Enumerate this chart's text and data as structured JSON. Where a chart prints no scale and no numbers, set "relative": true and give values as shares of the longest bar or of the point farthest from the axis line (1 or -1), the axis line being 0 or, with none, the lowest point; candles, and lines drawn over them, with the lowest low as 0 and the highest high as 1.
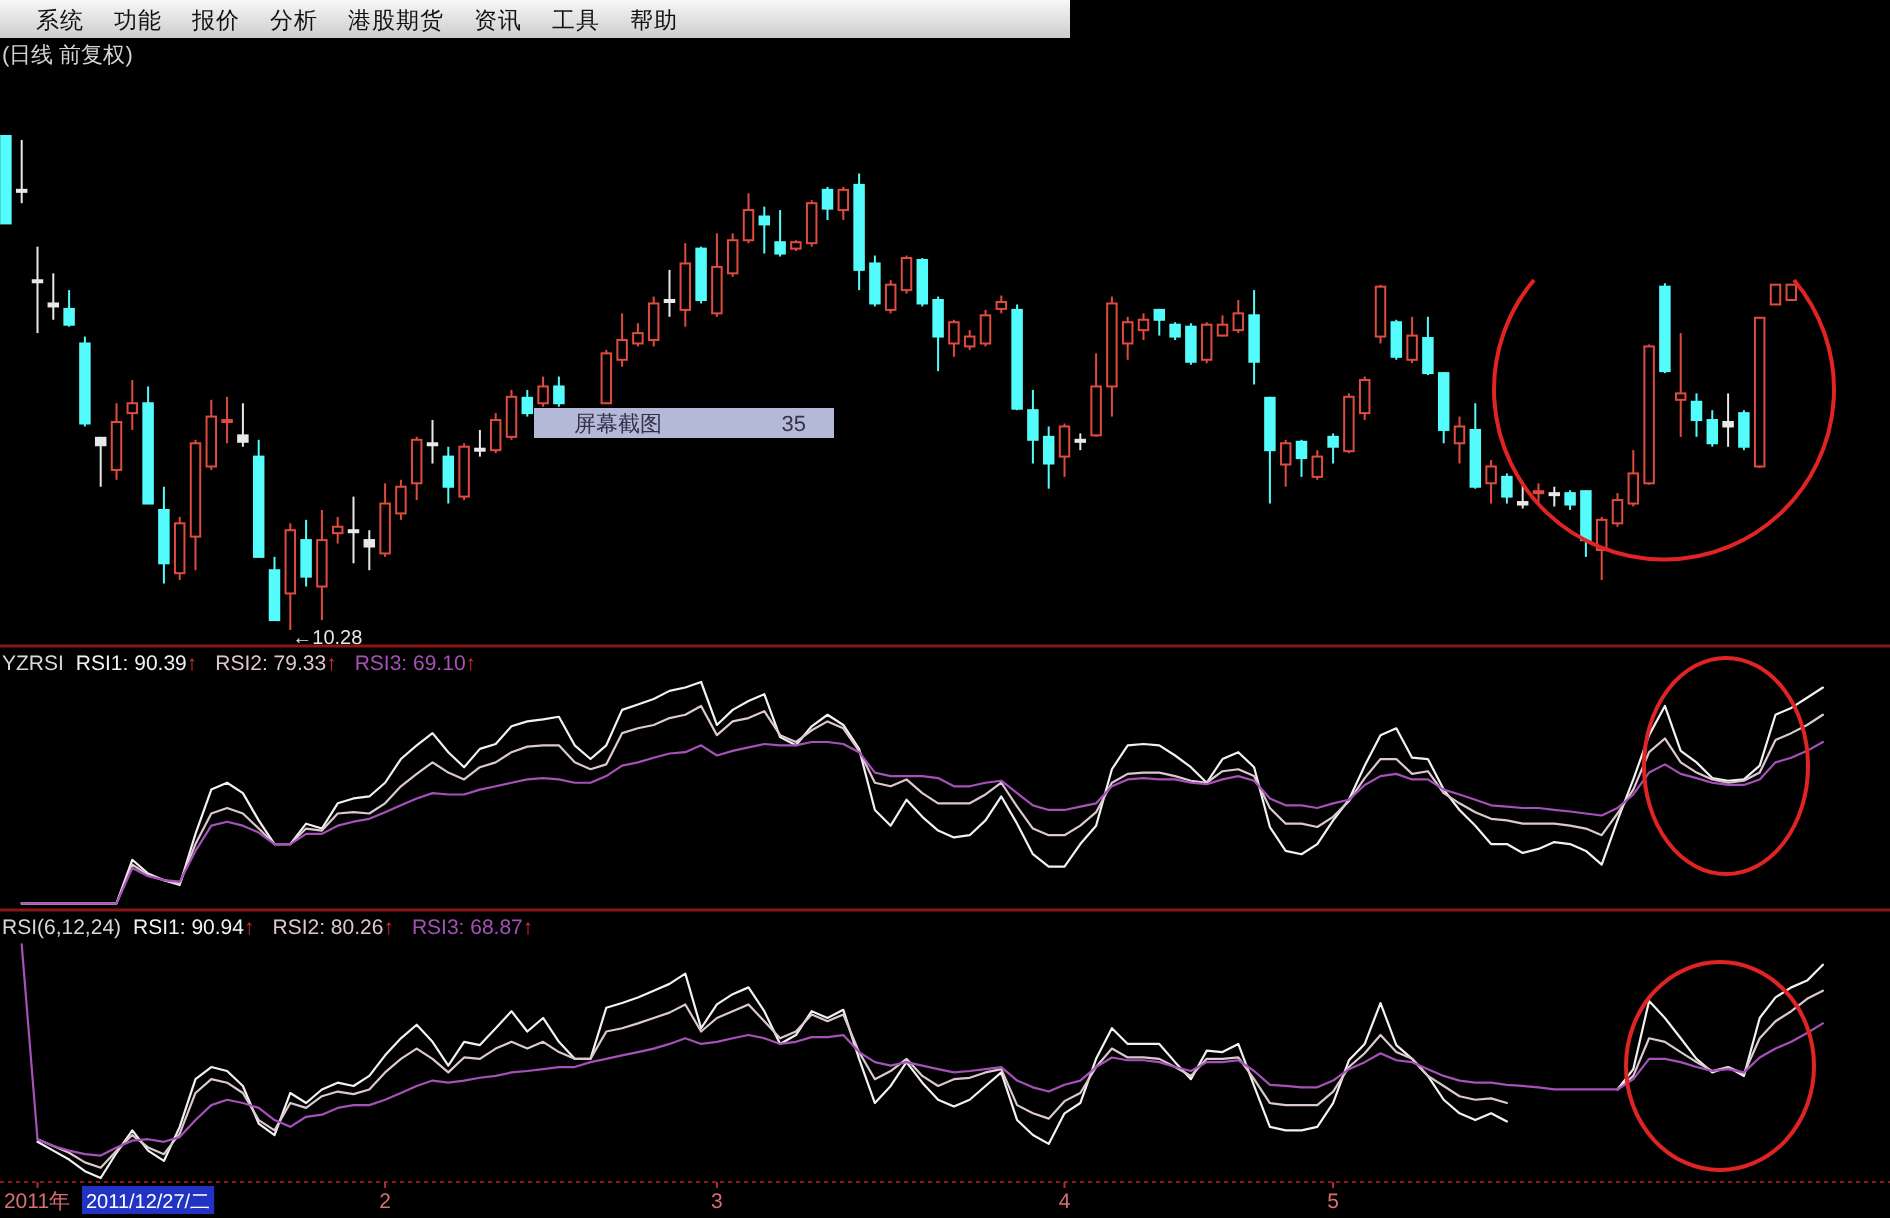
{
  "chart_data": [
    {
      "type": "other",
      "annotations": [
        "系统",
        "功能",
        "报价",
        "分析",
        "港股期货",
        "资讯",
        "工具",
        "帮助"
      ]
    },
    {
      "type": "candlestick",
      "title": "(日线 前复权)",
      "relative": true,
      "categories": [
        null,
        null,
        null,
        null,
        null,
        null,
        null,
        null,
        null,
        null,
        null,
        null,
        null,
        null,
        null,
        null,
        null,
        null,
        null,
        null,
        null,
        null,
        null,
        null,
        null,
        null,
        null,
        null,
        null,
        null,
        null,
        null,
        null,
        null,
        null,
        null,
        null,
        null,
        null,
        null,
        null,
        null,
        null,
        null,
        null,
        null,
        null,
        null,
        null,
        null,
        null,
        null,
        null,
        null,
        null,
        null,
        null,
        null,
        null,
        null,
        null,
        null,
        null,
        null,
        null,
        null,
        null,
        null,
        null,
        null,
        null,
        null,
        null,
        null,
        null,
        null,
        null,
        null,
        null,
        null,
        null,
        null,
        null,
        null,
        null,
        null,
        null,
        null,
        null,
        null,
        null,
        null,
        null,
        null,
        null,
        null,
        null,
        null,
        null,
        null,
        null,
        null,
        null,
        null,
        null,
        null,
        null,
        null,
        null,
        null,
        null,
        null,
        null,
        null,
        null,
        null
      ],
      "ohlc": [
        [
          1,
          1,
          0.823,
          0.823
        ],
        [
          0.891,
          0.992,
          0.864,
          0.891
        ],
        [
          0.708,
          0.776,
          0.601,
          0.708
        ],
        [
          0.661,
          0.722,
          0.628,
          0.655
        ],
        [
          0.65,
          0.688,
          0.614,
          0.618
        ],
        [
          0.58,
          0.594,
          0.412,
          0.418
        ],
        [
          0.389,
          0.391,
          0.29,
          0.374
        ],
        [
          0.324,
          0.459,
          0.304,
          0.421
        ],
        [
          0.439,
          0.506,
          0.405,
          0.459
        ],
        [
          0.459,
          0.493,
          0.256,
          0.256
        ],
        [
          0.243,
          0.29,
          0.094,
          0.135
        ],
        [
          0.115,
          0.229,
          0.101,
          0.216
        ],
        [
          0.189,
          0.385,
          0.121,
          0.378
        ],
        [
          0.331,
          0.466,
          0.324,
          0.432
        ],
        [
          0.425,
          0.472,
          0.378,
          0.425
        ],
        [
          0.394,
          0.459,
          0.371,
          0.381
        ],
        [
          0.351,
          0.385,
          0.146,
          0.148
        ],
        [
          0.121,
          0.148,
          0.02,
          0.02
        ],
        [
          0.074,
          0.216,
          0,
          0.202
        ],
        [
          0.182,
          0.223,
          0.088,
          0.108
        ],
        [
          0.088,
          0.243,
          0.02,
          0.182
        ],
        [
          0.196,
          0.229,
          0.175,
          0.209
        ],
        [
          0.202,
          0.27,
          0.135,
          0.202
        ],
        [
          0.182,
          0.202,
          0.121,
          0.169
        ],
        [
          0.155,
          0.297,
          0.148,
          0.256
        ],
        [
          0.236,
          0.304,
          0.223,
          0.29
        ],
        [
          0.297,
          0.391,
          0.263,
          0.385
        ],
        [
          0.378,
          0.425,
          0.337,
          0.378
        ],
        [
          0.351,
          0.371,
          0.256,
          0.29
        ],
        [
          0.27,
          0.378,
          0.263,
          0.371
        ],
        [
          0.367,
          0.405,
          0.351,
          0.367
        ],
        [
          0.364,
          0.439,
          0.358,
          0.425
        ],
        [
          0.391,
          0.486,
          0.385,
          0.472
        ],
        [
          0.47,
          0.486,
          0.432,
          0.439
        ],
        [
          0.459,
          0.513,
          0.452,
          0.493
        ],
        [
          0.493,
          0.513,
          0.452,
          0.459
        ],
        null,
        null,
        [
          0.459,
          0.567,
          0.459,
          0.56
        ],
        [
          0.547,
          0.641,
          0.533,
          0.587
        ],
        [
          0.58,
          0.621,
          0.574,
          0.601
        ],
        [
          0.587,
          0.675,
          0.574,
          0.661
        ],
        [
          0.668,
          0.729,
          0.634,
          0.668
        ],
        [
          0.648,
          0.783,
          0.614,
          0.742
        ],
        [
          0.772,
          0.776,
          0.661,
          0.668
        ],
        [
          0.641,
          0.803,
          0.634,
          0.735
        ],
        [
          0.722,
          0.803,
          0.715,
          0.789
        ],
        [
          0.789,
          0.884,
          0.783,
          0.85
        ],
        [
          0.837,
          0.857,
          0.762,
          0.821
        ],
        [
          0.785,
          0.85,
          0.756,
          0.762
        ],
        [
          0.772,
          0.789,
          0.767,
          0.785
        ],
        [
          0.783,
          0.87,
          0.776,
          0.864
        ],
        [
          0.891,
          0.897,
          0.83,
          0.853
        ],
        [
          0.85,
          0.897,
          0.83,
          0.891
        ],
        [
          0.901,
          0.924,
          0.688,
          0.729
        ],
        [
          0.742,
          0.758,
          0.655,
          0.661
        ],
        [
          0.648,
          0.708,
          0.641,
          0.699
        ],
        [
          0.688,
          0.758,
          0.681,
          0.753
        ],
        [
          0.749,
          0.753,
          0.655,
          0.661
        ],
        [
          0.668,
          0.675,
          0.524,
          0.594
        ],
        [
          0.58,
          0.628,
          0.553,
          0.623
        ],
        [
          0.574,
          0.607,
          0.567,
          0.594
        ],
        [
          0.58,
          0.648,
          0.574,
          0.637
        ],
        [
          0.65,
          0.677,
          0.641,
          0.664
        ],
        [
          0.648,
          0.659,
          0.445,
          0.448
        ],
        [
          0.445,
          0.486,
          0.337,
          0.385
        ],
        [
          0.391,
          0.412,
          0.286,
          0.337
        ],
        [
          0.351,
          0.418,
          0.31,
          0.412
        ],
        [
          0.385,
          0.398,
          0.364,
          0.385
        ],
        [
          0.394,
          0.56,
          0.391,
          0.493
        ],
        [
          0.493,
          0.675,
          0.432,
          0.661
        ],
        [
          0.58,
          0.634,
          0.547,
          0.623
        ],
        [
          0.607,
          0.641,
          0.587,
          0.628
        ],
        [
          0.648,
          0.65,
          0.596,
          0.628
        ],
        [
          0.618,
          0.623,
          0.587,
          0.594
        ],
        [
          0.614,
          0.621,
          0.537,
          0.543
        ],
        [
          0.547,
          0.623,
          0.54,
          0.618
        ],
        [
          0.596,
          0.637,
          0.594,
          0.618
        ],
        [
          0.607,
          0.668,
          0.601,
          0.641
        ],
        [
          0.637,
          0.688,
          0.497,
          0.543
        ],
        [
          0.47,
          0.472,
          0.256,
          0.364
        ],
        [
          0.335,
          0.385,
          0.29,
          0.378
        ],
        [
          0.381,
          0.385,
          0.31,
          0.348
        ],
        [
          0.31,
          0.364,
          0.304,
          0.351
        ],
        [
          0.391,
          0.398,
          0.337,
          0.371
        ],
        [
          0.362,
          0.479,
          0.358,
          0.472
        ],
        [
          0.439,
          0.513,
          0.425,
          0.506
        ],
        [
          0.594,
          0.699,
          0.58,
          0.695
        ],
        [
          0.623,
          0.628,
          0.547,
          0.553
        ],
        [
          0.547,
          0.634,
          0.54,
          0.596
        ],
        [
          0.591,
          0.634,
          0.516,
          0.52
        ],
        [
          0.52,
          0.522,
          0.378,
          0.405
        ],
        [
          0.378,
          0.432,
          0.337,
          0.412
        ],
        [
          0.405,
          0.459,
          0.286,
          0.29
        ],
        [
          0.297,
          0.344,
          0.256,
          0.331
        ],
        [
          0.31,
          0.317,
          0.256,
          0.27
        ],
        [
          0.259,
          0.297,
          0.246,
          0.254
        ],
        [
          0.281,
          0.297,
          0.256,
          0.281
        ],
        [
          0.277,
          0.29,
          0.25,
          0.277
        ],
        [
          0.277,
          0.283,
          0.243,
          0.254
        ],
        [
          0.281,
          0.283,
          0.148,
          0.182
        ],
        [
          0.162,
          0.229,
          0.101,
          0.223
        ],
        [
          0.216,
          0.277,
          0.209,
          0.263
        ],
        [
          0.256,
          0.364,
          0.25,
          0.317
        ],
        [
          0.297,
          0.578,
          0.294,
          0.574
        ],
        [
          0.695,
          0.702,
          0.52,
          0.524
        ],
        [
          0.466,
          0.601,
          0.391,
          0.479
        ],
        [
          0.462,
          0.479,
          0.391,
          0.425
        ],
        [
          0.425,
          0.445,
          0.371,
          0.378
        ],
        [
          0.421,
          0.479,
          0.371,
          0.412
        ],
        [
          0.439,
          0.445,
          0.364,
          0.371
        ],
        [
          0.331,
          0.634,
          0.328,
          0.632
        ],
        [
          0.659,
          0.699,
          0.659,
          0.699
        ],
        [
          0.668,
          0.699,
          0.668,
          0.699
        ],
        null,
        null
      ],
      "colors": [
        "#54fcfc",
        "#e8e8e8",
        "#e8e8e8",
        "#e8e8e8",
        "#54fcfc",
        "#54fcfc",
        "#e8e8e8",
        "#e04b3f",
        "#e04b3f",
        "#54fcfc",
        "#54fcfc",
        "#e04b3f",
        "#e04b3f",
        "#e04b3f",
        "#e04b3f",
        "#e8e8e8",
        "#54fcfc",
        "#54fcfc",
        "#e04b3f",
        "#54fcfc",
        "#e04b3f",
        "#e04b3f",
        "#e8e8e8",
        "#e8e8e8",
        "#e04b3f",
        "#e04b3f",
        "#e04b3f",
        "#e8e8e8",
        "#54fcfc",
        "#e04b3f",
        "#e8e8e8",
        "#e04b3f",
        "#e04b3f",
        "#54fcfc",
        "#e04b3f",
        "#54fcfc",
        null,
        null,
        "#e04b3f",
        "#e04b3f",
        "#e04b3f",
        "#e04b3f",
        "#e8e8e8",
        "#e04b3f",
        "#54fcfc",
        "#e04b3f",
        "#e04b3f",
        "#e04b3f",
        "#54fcfc",
        "#54fcfc",
        "#e04b3f",
        "#e04b3f",
        "#54fcfc",
        "#e04b3f",
        "#54fcfc",
        "#54fcfc",
        "#e04b3f",
        "#e04b3f",
        "#54fcfc",
        "#54fcfc",
        "#e04b3f",
        "#e04b3f",
        "#e04b3f",
        "#e04b3f",
        "#54fcfc",
        "#54fcfc",
        "#54fcfc",
        "#e04b3f",
        "#e8e8e8",
        "#e04b3f",
        "#e04b3f",
        "#e04b3f",
        "#e04b3f",
        "#54fcfc",
        "#54fcfc",
        "#54fcfc",
        "#e04b3f",
        "#e04b3f",
        "#e04b3f",
        "#54fcfc",
        "#54fcfc",
        "#e04b3f",
        "#54fcfc",
        "#e04b3f",
        "#54fcfc",
        "#e04b3f",
        "#e04b3f",
        "#e04b3f",
        "#54fcfc",
        "#e04b3f",
        "#54fcfc",
        "#54fcfc",
        "#e04b3f",
        "#54fcfc",
        "#e04b3f",
        "#54fcfc",
        "#e8e8e8",
        "#e04b3f",
        "#e8e8e8",
        "#54fcfc",
        "#54fcfc",
        "#e04b3f",
        "#e04b3f",
        "#e04b3f",
        "#e04b3f",
        "#54fcfc",
        "#e04b3f",
        "#54fcfc",
        "#54fcfc",
        "#e8e8e8",
        "#54fcfc",
        "#e04b3f",
        "#e04b3f",
        "#e04b3f",
        null,
        null
      ],
      "annotations": [
        "屏幕截图",
        "35",
        "←10.28"
      ]
    },
    {
      "type": "line",
      "title": "YZRSI",
      "relative": true,
      "legend": "top left",
      "categories": [
        null,
        null,
        null,
        null,
        null,
        null,
        null,
        null,
        null,
        null,
        null,
        null,
        null,
        null,
        null,
        null,
        null,
        null,
        null,
        null,
        null,
        null,
        null,
        null,
        null,
        null,
        null,
        null,
        null,
        null,
        null,
        null,
        null,
        null,
        null,
        null,
        null,
        null,
        null,
        null,
        null,
        null,
        null,
        null,
        null,
        null,
        null,
        null,
        null,
        null,
        null,
        null,
        null,
        null,
        null,
        null,
        null,
        null,
        null,
        null,
        null,
        null,
        null,
        null,
        null,
        null,
        null,
        null,
        null,
        null,
        null,
        null,
        null,
        null,
        null,
        null,
        null,
        null,
        null,
        null,
        null,
        null,
        null,
        null,
        null,
        null,
        null,
        null,
        null,
        null,
        null,
        null,
        null,
        null,
        null,
        null,
        null,
        null,
        null,
        null,
        null,
        null,
        null,
        null,
        null,
        null,
        null,
        null,
        null,
        null,
        null,
        null,
        null,
        null,
        null,
        null
      ],
      "series": [
        {
          "name": "RSI1: 90.39↑",
          "color": "#f2f2f2",
          "values": [
            null,
            0,
            0,
            0,
            0,
            0,
            0,
            0,
            0.197,
            0.135,
            0.105,
            0.083,
            0.314,
            0.514,
            0.545,
            0.498,
            0.375,
            0.268,
            0.268,
            0.36,
            0.338,
            0.452,
            0.474,
            0.483,
            0.545,
            0.652,
            0.714,
            0.769,
            0.683,
            0.615,
            0.698,
            0.72,
            0.8,
            0.822,
            0.831,
            0.843,
            0.714,
            0.652,
            0.714,
            0.874,
            0.898,
            0.923,
            0.96,
            0.975,
            1,
            0.806,
            0.874,
            0.914,
            0.945,
            0.751,
            0.714,
            0.8,
            0.852,
            0.806,
            0.698,
            0.422,
            0.351,
            0.468,
            0.391,
            0.329,
            0.298,
            0.308,
            0.375,
            0.483,
            0.36,
            0.222,
            0.166,
            0.166,
            0.268,
            0.351,
            0.606,
            0.714,
            0.72,
            0.714,
            0.668,
            0.615,
            0.545,
            0.652,
            0.683,
            0.615,
            0.345,
            0.237,
            0.222,
            0.268,
            0.375,
            0.468,
            0.622,
            0.76,
            0.791,
            0.658,
            0.652,
            0.514,
            0.422,
            0.351,
            0.268,
            0.268,
            0.228,
            0.246,
            0.277,
            0.268,
            0.237,
            0.175,
            0.375,
            0.56,
            0.76,
            0.892,
            0.689,
            0.637,
            0.566,
            0.554,
            0.56,
            0.622,
            0.852,
            0.883,
            0.929,
            0.975
          ]
        },
        {
          "name": "RSI2: 79.33↑",
          "color": "#dcc8d0",
          "values": [
            null,
            0,
            0,
            0,
            0,
            0,
            0,
            0,
            0.175,
            0.129,
            0.105,
            0.089,
            0.268,
            0.406,
            0.431,
            0.406,
            0.338,
            0.268,
            0.268,
            0.338,
            0.329,
            0.406,
            0.412,
            0.406,
            0.452,
            0.529,
            0.585,
            0.637,
            0.591,
            0.56,
            0.615,
            0.637,
            0.683,
            0.708,
            0.714,
            0.714,
            0.637,
            0.606,
            0.628,
            0.769,
            0.791,
            0.806,
            0.837,
            0.852,
            0.892,
            0.76,
            0.822,
            0.837,
            0.868,
            0.76,
            0.729,
            0.782,
            0.822,
            0.791,
            0.689,
            0.545,
            0.529,
            0.56,
            0.498,
            0.452,
            0.452,
            0.452,
            0.492,
            0.545,
            0.437,
            0.338,
            0.308,
            0.308,
            0.351,
            0.412,
            0.545,
            0.585,
            0.591,
            0.591,
            0.575,
            0.554,
            0.545,
            0.597,
            0.606,
            0.575,
            0.431,
            0.36,
            0.36,
            0.345,
            0.391,
            0.462,
            0.566,
            0.652,
            0.652,
            0.585,
            0.597,
            0.498,
            0.452,
            0.412,
            0.382,
            0.375,
            0.36,
            0.36,
            0.36,
            0.351,
            0.338,
            0.308,
            0.406,
            0.514,
            0.683,
            0.745,
            0.637,
            0.591,
            0.56,
            0.545,
            0.554,
            0.591,
            0.738,
            0.769,
            0.806,
            0.852
          ]
        },
        {
          "name": "RSI3: 69.10↑",
          "color": "#a651b8",
          "values": [
            null,
            0,
            0,
            0,
            0,
            0,
            0,
            0,
            0.16,
            0.123,
            0.105,
            0.098,
            0.237,
            0.351,
            0.369,
            0.351,
            0.32,
            0.268,
            0.268,
            0.314,
            0.314,
            0.351,
            0.369,
            0.382,
            0.412,
            0.443,
            0.474,
            0.498,
            0.492,
            0.492,
            0.514,
            0.529,
            0.545,
            0.56,
            0.566,
            0.56,
            0.545,
            0.545,
            0.575,
            0.622,
            0.637,
            0.658,
            0.677,
            0.683,
            0.714,
            0.668,
            0.689,
            0.705,
            0.72,
            0.714,
            0.714,
            0.729,
            0.729,
            0.72,
            0.683,
            0.591,
            0.575,
            0.575,
            0.575,
            0.566,
            0.529,
            0.529,
            0.545,
            0.554,
            0.498,
            0.443,
            0.422,
            0.422,
            0.437,
            0.452,
            0.529,
            0.56,
            0.566,
            0.56,
            0.56,
            0.545,
            0.538,
            0.56,
            0.575,
            0.554,
            0.474,
            0.443,
            0.443,
            0.431,
            0.452,
            0.468,
            0.535,
            0.575,
            0.585,
            0.56,
            0.56,
            0.514,
            0.492,
            0.468,
            0.443,
            0.437,
            0.431,
            0.431,
            0.422,
            0.415,
            0.406,
            0.397,
            0.431,
            0.492,
            0.591,
            0.628,
            0.585,
            0.566,
            0.545,
            0.535,
            0.535,
            0.56,
            0.637,
            0.658,
            0.689,
            0.729
          ]
        }
      ]
    },
    {
      "type": "line",
      "title": "RSI(6,12,24)",
      "relative": true,
      "tick_labels": "x",
      "legend": "top left",
      "categories": [
        null,
        null,
        "2011年",
        null,
        null,
        null,
        null,
        null,
        null,
        null,
        null,
        null,
        null,
        null,
        null,
        null,
        null,
        null,
        null,
        null,
        null,
        null,
        null,
        null,
        "2",
        null,
        null,
        null,
        null,
        null,
        null,
        null,
        null,
        null,
        null,
        null,
        null,
        null,
        null,
        null,
        null,
        null,
        null,
        null,
        null,
        "3",
        null,
        null,
        null,
        null,
        null,
        null,
        null,
        null,
        null,
        null,
        null,
        null,
        null,
        null,
        null,
        null,
        null,
        null,
        null,
        null,
        null,
        "4",
        null,
        null,
        null,
        null,
        null,
        null,
        null,
        null,
        null,
        null,
        null,
        null,
        null,
        null,
        null,
        null,
        "5",
        null,
        null,
        null,
        null,
        null,
        null,
        null,
        null,
        null,
        null,
        null,
        null,
        null,
        null,
        null,
        null,
        null,
        null,
        null,
        null,
        null,
        null,
        null,
        null,
        null,
        null,
        null,
        null,
        null,
        null,
        null
      ],
      "annotations": [
        "2011/12/27/二"
      ],
      "series": [
        {
          "name": "RSI1: 90.94↑",
          "color": "#f2f2f2",
          "values": [
            null,
            null,
            0.155,
            0.117,
            0.079,
            0.029,
            0,
            0.108,
            0.204,
            0.117,
            0.073,
            0.219,
            0.423,
            0.475,
            0.458,
            0.394,
            0.233,
            0.184,
            0.364,
            0.321,
            0.379,
            0.408,
            0.394,
            0.437,
            0.525,
            0.598,
            0.656,
            0.583,
            0.481,
            0.583,
            0.569,
            0.641,
            0.714,
            0.627,
            0.685,
            0.583,
            0.51,
            0.51,
            0.729,
            0.749,
            0.773,
            0.802,
            0.831,
            0.875,
            0.641,
            0.743,
            0.787,
            0.816,
            0.714,
            0.574,
            0.612,
            0.714,
            0.685,
            0.72,
            0.51,
            0.321,
            0.394,
            0.496,
            0.408,
            0.335,
            0.306,
            0.335,
            0.394,
            0.452,
            0.248,
            0.184,
            0.146,
            0.277,
            0.321,
            0.51,
            0.641,
            0.574,
            0.574,
            0.574,
            0.496,
            0.423,
            0.545,
            0.539,
            0.574,
            0.394,
            0.219,
            0.204,
            0.204,
            0.219,
            0.321,
            0.504,
            0.574,
            0.749,
            0.569,
            0.51,
            0.437,
            0.335,
            0.277,
            0.248,
            0.277,
            0.242,
            null,
            null,
            null,
            null,
            null,
            null,
            0.379,
            0.466,
            0.758,
            0.685,
            0.598,
            0.51,
            0.452,
            0.475,
            0.437,
            0.685,
            0.773,
            0.816,
            0.845,
            0.913
          ]
        },
        {
          "name": "RSI2: 80.26↑",
          "color": "#dcc8d0",
          "values": [
            null,
            null,
            0.166,
            0.137,
            0.108,
            0.067,
            0.044,
            0.117,
            0.184,
            0.131,
            0.102,
            0.19,
            0.364,
            0.423,
            0.408,
            0.364,
            0.248,
            0.204,
            0.321,
            0.3,
            0.35,
            0.37,
            0.359,
            0.379,
            0.452,
            0.51,
            0.554,
            0.51,
            0.452,
            0.516,
            0.51,
            0.554,
            0.583,
            0.554,
            0.583,
            0.539,
            0.51,
            0.51,
            0.627,
            0.641,
            0.662,
            0.685,
            0.708,
            0.743,
            0.627,
            0.685,
            0.714,
            0.743,
            0.671,
            0.598,
            0.627,
            0.7,
            0.671,
            0.7,
            0.539,
            0.423,
            0.458,
            0.51,
            0.437,
            0.394,
            0.423,
            0.429,
            0.452,
            0.466,
            0.312,
            0.277,
            0.254,
            0.329,
            0.364,
            0.475,
            0.554,
            0.516,
            0.516,
            0.51,
            0.475,
            0.437,
            0.51,
            0.51,
            0.516,
            0.423,
            0.321,
            0.312,
            0.312,
            0.312,
            0.37,
            0.475,
            0.534,
            0.612,
            0.539,
            0.51,
            0.437,
            0.394,
            0.35,
            0.335,
            0.341,
            0.321,
            null,
            null,
            null,
            null,
            null,
            null,
            0.379,
            0.437,
            0.598,
            0.583,
            0.539,
            0.496,
            0.458,
            0.475,
            0.446,
            0.598,
            0.671,
            0.714,
            0.767,
            0.802
          ]
        },
        {
          "name": "RSI3: 68.87↑",
          "color": "#a651b8",
          "values": [
            null,
            1,
            0.166,
            0.137,
            0.117,
            0.102,
            0.096,
            0.131,
            0.16,
            0.166,
            0.155,
            0.175,
            0.248,
            0.312,
            0.335,
            0.321,
            0.3,
            0.248,
            0.219,
            0.262,
            0.271,
            0.3,
            0.312,
            0.312,
            0.335,
            0.364,
            0.394,
            0.417,
            0.408,
            0.417,
            0.429,
            0.437,
            0.452,
            0.458,
            0.466,
            0.475,
            0.475,
            0.496,
            0.51,
            0.525,
            0.539,
            0.554,
            0.574,
            0.598,
            0.574,
            0.583,
            0.598,
            0.612,
            0.598,
            0.574,
            0.583,
            0.603,
            0.603,
            0.612,
            0.539,
            0.496,
            0.481,
            0.496,
            0.481,
            0.466,
            0.452,
            0.458,
            0.466,
            0.475,
            0.417,
            0.388,
            0.37,
            0.399,
            0.417,
            0.475,
            0.516,
            0.504,
            0.504,
            0.496,
            0.475,
            0.458,
            0.496,
            0.496,
            0.504,
            0.458,
            0.399,
            0.394,
            0.388,
            0.388,
            0.417,
            0.466,
            0.496,
            0.534,
            0.504,
            0.496,
            0.466,
            0.437,
            0.417,
            0.408,
            0.408,
            0.399,
            0.394,
            0.388,
            0.379,
            0.379,
            0.379,
            0.379,
            0.379,
            0.423,
            0.51,
            0.51,
            0.496,
            0.475,
            0.458,
            0.466,
            0.452,
            0.516,
            0.554,
            0.583,
            0.621,
            0.662
          ]
        }
      ]
    }
  ]
}
